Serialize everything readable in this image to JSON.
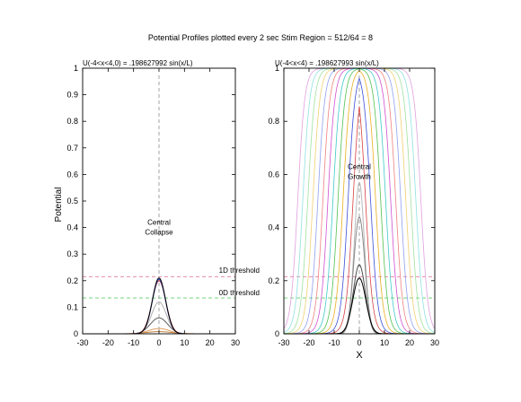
{
  "figure": {
    "title": "Potential Profiles plotted every 2 sec  Stim Region = 512/64 = 8",
    "ylabel": "Potential",
    "xlabel": "X",
    "threshold_1d_label": "1D threshold",
    "threshold_0d_label": "0D threshold"
  },
  "chart_data": [
    {
      "type": "line",
      "subtitle": "U(-4<x<4,0) = .198627992 sin(x/L)",
      "xlabel": "",
      "ylabel": "Potential",
      "xlim": [
        -30,
        30
      ],
      "ylim": [
        0,
        1
      ],
      "xticks": [
        -30,
        -20,
        -10,
        0,
        10,
        20,
        30
      ],
      "yticks": [
        0,
        0.1,
        0.2,
        0.3,
        0.4,
        0.5,
        0.6,
        0.7,
        0.8,
        0.9,
        1
      ],
      "grid": false,
      "annotations": [
        {
          "text": [
            "Central",
            "Collapse"
          ],
          "x": 0,
          "y": 0.41
        }
      ],
      "reference_lines": [
        {
          "label": "1D threshold",
          "y": 0.215,
          "color": "#e07c9a"
        },
        {
          "label": "0D threshold",
          "y": 0.135,
          "color": "#5fcf6a"
        },
        {
          "x": 0,
          "color": "#9a9a9a"
        }
      ],
      "series": [
        {
          "peak": 0.21,
          "width": 2.6,
          "color": "#000000"
        },
        {
          "peak": 0.205,
          "width": 2.6,
          "color": "#2850d8"
        },
        {
          "peak": 0.2,
          "width": 2.7,
          "color": "#c02020"
        },
        {
          "peak": 0.12,
          "width": 2.9,
          "color": "#b0b0b0"
        },
        {
          "peak": 0.06,
          "width": 3.4,
          "color": "#606060"
        },
        {
          "peak": 0.02,
          "width": 4.0,
          "color": "#e0a060"
        },
        {
          "peak": 0.008,
          "width": 5.0,
          "color": "#c08040"
        }
      ]
    },
    {
      "type": "line",
      "subtitle": "U(-4<x<4) = .198627993 sin(x/L)",
      "xlabel": "X",
      "ylabel": "",
      "xlim": [
        -30,
        30
      ],
      "ylim": [
        0,
        1
      ],
      "xticks": [
        -30,
        -20,
        -10,
        0,
        10,
        20,
        30
      ],
      "yticks": [
        0,
        0.2,
        0.4,
        0.6,
        0.8,
        1
      ],
      "grid": false,
      "annotations": [
        {
          "text": [
            "Central",
            "Growth"
          ],
          "x": 0,
          "y": 0.62
        }
      ],
      "reference_lines": [
        {
          "y": 0.215,
          "color": "#e07c9a"
        },
        {
          "y": 0.135,
          "color": "#5fcf6a"
        },
        {
          "x": 0,
          "color": "#9a9a9a"
        }
      ],
      "series": [
        {
          "type": "bump",
          "peak": 0.21,
          "width": 2.6,
          "color": "#000000"
        },
        {
          "type": "bump",
          "peak": 0.26,
          "width": 2.4,
          "color": "#4d4d4d"
        },
        {
          "type": "bump",
          "peak": 0.44,
          "width": 2.2,
          "color": "#888888"
        },
        {
          "type": "bump",
          "peak": 0.57,
          "width": 2.0,
          "color": "#b8b8b8"
        },
        {
          "type": "plateau",
          "half_width": 2.5,
          "color": "#d94040"
        },
        {
          "type": "plateau",
          "half_width": 4.5,
          "color": "#3b4fd8"
        },
        {
          "type": "plateau",
          "half_width": 6.5,
          "color": "#e8b020"
        },
        {
          "type": "plateau",
          "half_width": 8.5,
          "color": "#50c050"
        },
        {
          "type": "plateau",
          "half_width": 10.5,
          "color": "#40c8c8"
        },
        {
          "type": "plateau",
          "half_width": 12.5,
          "color": "#d050d0"
        },
        {
          "type": "plateau",
          "half_width": 14.5,
          "color": "#f08080"
        },
        {
          "type": "plateau",
          "half_width": 16.5,
          "color": "#8fa0f0"
        },
        {
          "type": "plateau",
          "half_width": 18.5,
          "color": "#f0d070"
        },
        {
          "type": "plateau",
          "half_width": 20.5,
          "color": "#a0e0a0"
        },
        {
          "type": "plateau",
          "half_width": 22.5,
          "color": "#90e0e0"
        },
        {
          "type": "plateau",
          "half_width": 24.5,
          "color": "#e0a0e0"
        }
      ]
    }
  ]
}
